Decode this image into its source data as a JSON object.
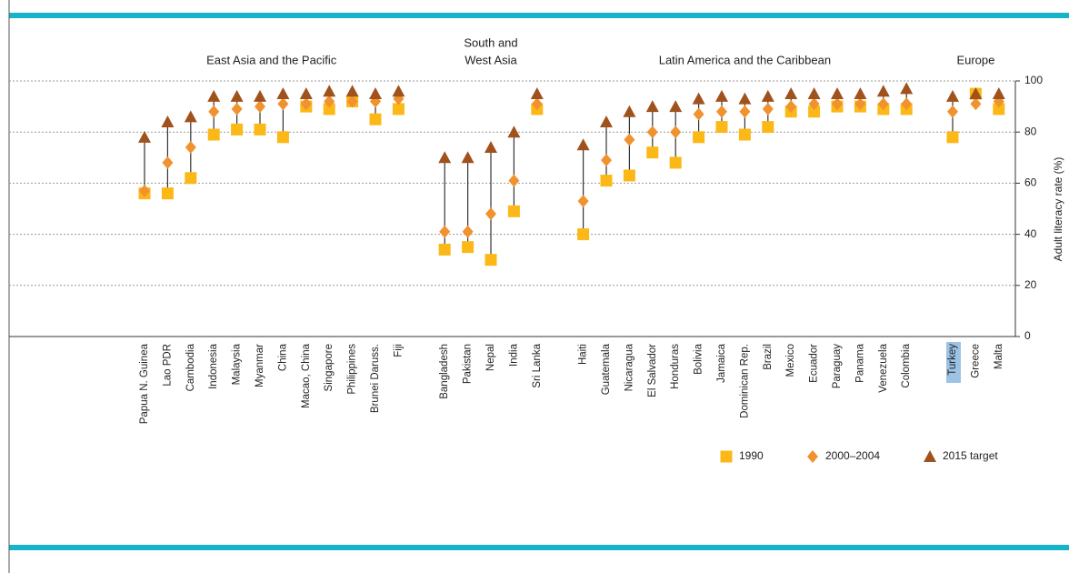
{
  "chart_data": {
    "type": "dot",
    "y_label": "Adult literacy rate (%)",
    "groups": [
      [
        "East Asia and the Pacific"
      ],
      [
        "South and",
        "West Asia"
      ],
      [
        "Latin America and the Caribbean"
      ],
      [
        "Europe"
      ]
    ],
    "categories": [
      "Papua N. Guinea",
      "Lao PDR",
      "Cambodia",
      "Indonesia",
      "Malaysia",
      "Myanmar",
      "China",
      "Macao, China",
      "Singapore",
      "Philippines",
      "Brunei Daruss.",
      "Fiji",
      null,
      "Bangladesh",
      "Pakistan",
      "Nepal",
      "India",
      "Sri Lanka",
      null,
      "Haiti",
      "Guatemala",
      "Nicaragua",
      "El Salvador",
      "Honduras",
      "Bolivia",
      "Jamaica",
      "Dominican Rep.",
      "Brazil",
      "Mexico",
      "Ecuador",
      "Paraguay",
      "Panama",
      "Venezuela",
      "Colombia",
      null,
      "Turkey",
      "Greece",
      "Malta"
    ],
    "series": [
      {
        "name": "1990",
        "color": "#fbb817",
        "marker": "square",
        "values": [
          56,
          56,
          62,
          79,
          81,
          81,
          78,
          90,
          89,
          92,
          85,
          89,
          null,
          34,
          35,
          30,
          49,
          89,
          null,
          40,
          61,
          63,
          72,
          68,
          78,
          82,
          79,
          82,
          88,
          88,
          90,
          90,
          89,
          89,
          null,
          78,
          95,
          89
        ]
      },
      {
        "name": "2000–2004",
        "color": "#f0922e",
        "marker": "diamond",
        "values": [
          57,
          68,
          74,
          88,
          89,
          90,
          91,
          91,
          92,
          92,
          92,
          93,
          null,
          41,
          41,
          48,
          61,
          91,
          null,
          53,
          69,
          77,
          80,
          80,
          87,
          88,
          88,
          89,
          90,
          91,
          91,
          91,
          91,
          91,
          null,
          88,
          91,
          92
        ]
      },
      {
        "name": "2015 target",
        "color": "#a0521d",
        "marker": "triangle",
        "values": [
          78,
          84,
          86,
          94,
          94,
          94,
          95,
          95,
          96,
          96,
          95,
          96,
          null,
          70,
          70,
          74,
          80,
          95,
          null,
          75,
          84,
          88,
          90,
          90,
          93,
          94,
          93,
          94,
          95,
          95,
          95,
          95,
          96,
          97,
          null,
          94,
          95,
          95
        ]
      }
    ],
    "ylim": [
      0,
      100
    ],
    "yticks": [
      0,
      20,
      40,
      60,
      80,
      100
    ],
    "grid": true,
    "legend": "bottom-right"
  }
}
